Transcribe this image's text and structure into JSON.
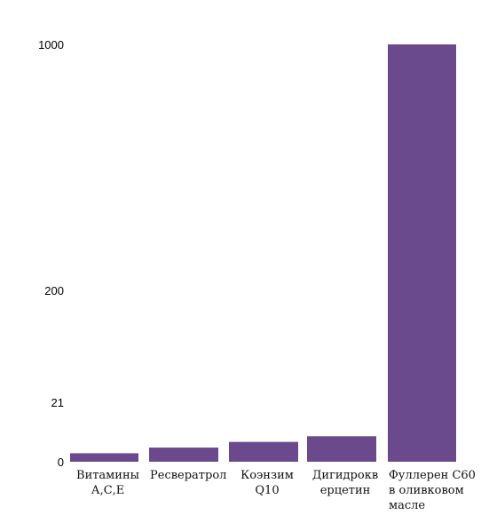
{
  "chart_data": {
    "type": "bar",
    "title": "",
    "xlabel": "",
    "ylabel": "",
    "categories": [
      "Витамины А,С,Е",
      "Ресвератрол",
      "Коэнзим Q10",
      "Дигидрокверцетин",
      "Фуллерен С60 в оливковом масле"
    ],
    "category_lines": [
      [
        "Витамины",
        "А,С,Е"
      ],
      [
        "Ресвератрол"
      ],
      [
        "Коэнзим",
        "Q10"
      ],
      [
        "Дигидрокв",
        "ерцетин"
      ],
      [
        "Фуллерен С60",
        "в оливковом",
        "масле"
      ]
    ],
    "values": [
      3,
      5,
      7,
      9,
      1000
    ],
    "y_ticks": [
      0,
      21,
      200,
      1000
    ],
    "y_tick_labels": [
      "0",
      "21",
      "200",
      "1000"
    ],
    "y_scale": "nonlinear",
    "grid": false,
    "legend": "none",
    "bar_color": "#6a4a8c"
  }
}
